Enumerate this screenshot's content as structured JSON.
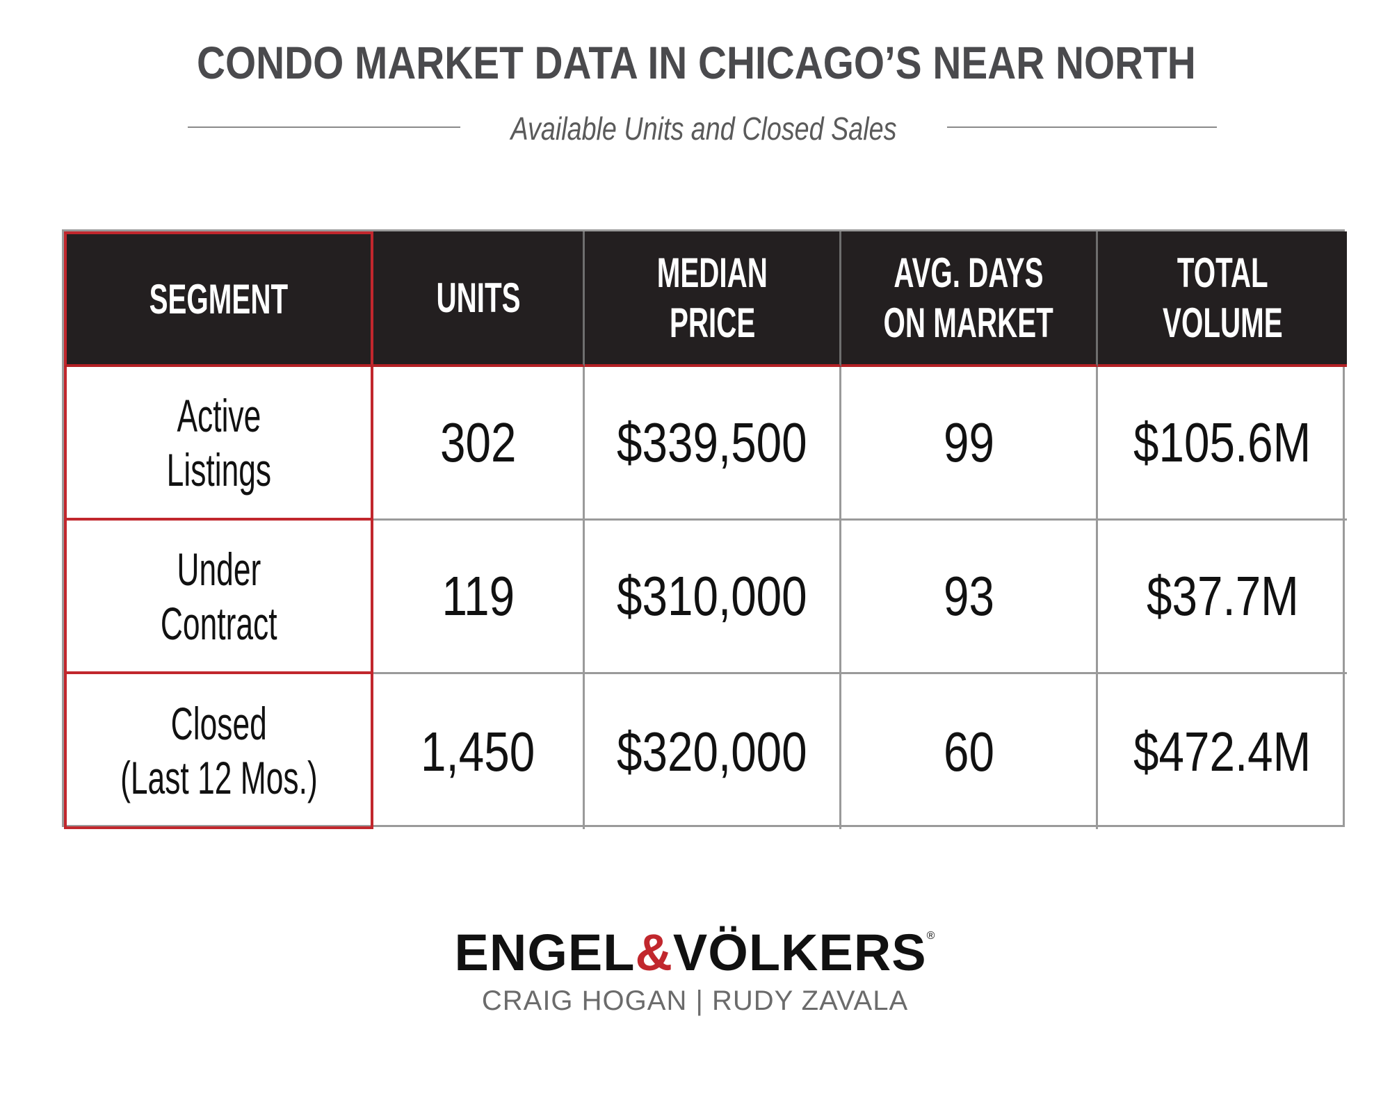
{
  "header": {
    "title": "CONDO MARKET DATA IN CHICAGO’S NEAR NORTH",
    "subtitle": "Available Units and Closed Sales"
  },
  "table": {
    "columns": [
      [
        "SEGMENT"
      ],
      [
        "UNITS"
      ],
      [
        "MEDIAN",
        "PRICE"
      ],
      [
        "AVG. DAYS",
        "ON MARKET"
      ],
      [
        "TOTAL",
        "VOLUME"
      ]
    ],
    "rows": [
      {
        "segment": [
          "Active",
          "Listings"
        ],
        "units": "302",
        "median_price": "$339,500",
        "avg_days": "99",
        "total_volume": "$105.6M"
      },
      {
        "segment": [
          "Under",
          "Contract"
        ],
        "units": "119",
        "median_price": "$310,000",
        "avg_days": "93",
        "total_volume": "$37.7M"
      },
      {
        "segment": [
          "Closed",
          "(Last 12 Mos.)"
        ],
        "units": "1,450",
        "median_price": "$320,000",
        "avg_days": "60",
        "total_volume": "$472.4M"
      }
    ]
  },
  "footer": {
    "logo_part1": "ENGEL",
    "logo_amp": "&",
    "logo_part2": "VÖLKERS",
    "logo_reg": "®",
    "agents": "CRAIG HOGAN | RUDY ZAVALA"
  },
  "colors": {
    "header_bg": "#231f20",
    "accent_red": "#c1272d",
    "title_gray": "#4a4a4d",
    "grid_gray": "#9a9a9a"
  }
}
